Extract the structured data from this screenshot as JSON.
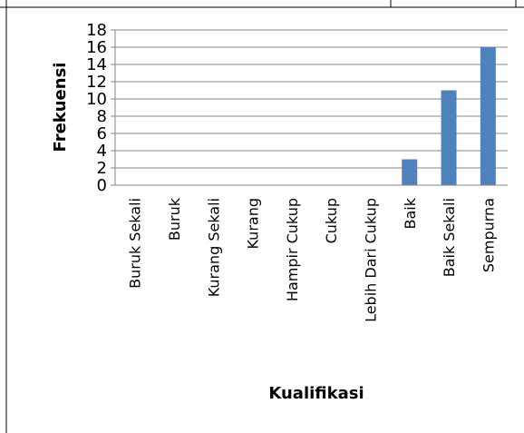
{
  "chart_data": {
    "type": "bar",
    "title": "",
    "xlabel": "Kualifikasi",
    "ylabel": "Frekuensi",
    "categories": [
      "Buruk Sekali",
      "Buruk",
      "Kurang Sekali",
      "Kurang",
      "Hampir Cukup",
      "Cukup",
      "Lebih Dari Cukup",
      "Baik",
      "Baik Sekali",
      "Sempurna"
    ],
    "values": [
      0,
      0,
      0,
      0,
      0,
      0,
      0,
      3,
      11,
      16
    ],
    "ylim": [
      0,
      18
    ],
    "yticks": [
      "0",
      "2",
      "4",
      "6",
      "8",
      "10",
      "12",
      "14",
      "16",
      "18"
    ],
    "grid": true,
    "legend": "none",
    "bar_color": "#4f81bd",
    "grid_color": "#868686"
  }
}
